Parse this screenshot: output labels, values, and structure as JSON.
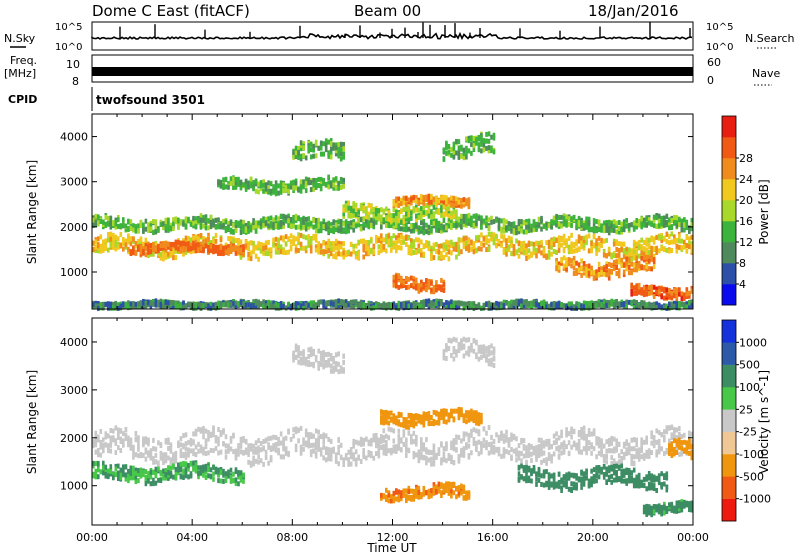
{
  "header": {
    "title": "Dome C East (fitACF)",
    "beam": "Beam 00",
    "date": "18/Jan/2016"
  },
  "top_panels": {
    "nsky_label": "N.Sky",
    "nsky_ticks": [
      "10^5",
      "10^0"
    ],
    "nsearch_label": "N.Search",
    "nsearch_ticks": [
      "10^5",
      "10^0"
    ],
    "freq_label": "Freq.",
    "freq_unit": "[MHz]",
    "freq_ticks": [
      "10",
      "8"
    ],
    "nave_label": "Nave",
    "nave_ticks": [
      "60",
      "0"
    ],
    "cpid_label": "CPID",
    "cpid_value": "twofsound 3501"
  },
  "colors": {
    "power": [
      "#0a0aee",
      "#2c4fa8",
      "#4e8a5c",
      "#3cb33c",
      "#a8d82a",
      "#f0c81e",
      "#f08c1e",
      "#f05a14",
      "#e81e12"
    ],
    "velocity": [
      "#ee1a10",
      "#f05a14",
      "#f0960e",
      "#f0c896",
      "#c8c8c8",
      "#48c848",
      "#3c8c64",
      "#2c5aa8",
      "#1432dc"
    ]
  },
  "chart_data": [
    {
      "type": "heatmap",
      "name": "power",
      "xlabel": "",
      "ylabel": "Slant Range [km]",
      "xlim": [
        0,
        24
      ],
      "ylim": [
        180,
        4500
      ],
      "yticks": [
        "1000",
        "2000",
        "3000",
        "4000"
      ],
      "colorbar": {
        "label": "Power [dB]",
        "ticks": [
          "4",
          "8",
          "12",
          "16",
          "20",
          "24",
          "28"
        ],
        "range": [
          0,
          32
        ]
      },
      "bands": [
        {
          "from_h": 0.0,
          "to_h": 24.0,
          "center_km": 1550,
          "width_km": 380,
          "level": 20
        },
        {
          "from_h": 0.0,
          "to_h": 24.0,
          "center_km": 2050,
          "width_km": 260,
          "level": 12
        },
        {
          "from_h": 1.5,
          "to_h": 6.0,
          "center_km": 1520,
          "width_km": 180,
          "level": 26
        },
        {
          "from_h": 10.0,
          "to_h": 14.5,
          "center_km": 2300,
          "width_km": 300,
          "level": 16
        },
        {
          "from_h": 12.0,
          "to_h": 15.0,
          "center_km": 2550,
          "width_km": 160,
          "level": 24
        },
        {
          "from_h": 8.0,
          "to_h": 10.0,
          "center_km": 3650,
          "width_km": 380,
          "level": 12
        },
        {
          "from_h": 14.0,
          "to_h": 16.0,
          "center_km": 3750,
          "width_km": 420,
          "level": 12
        },
        {
          "from_h": 12.0,
          "to_h": 14.0,
          "center_km": 750,
          "width_km": 280,
          "level": 26
        },
        {
          "from_h": 18.5,
          "to_h": 22.5,
          "center_km": 1100,
          "width_km": 350,
          "level": 24
        },
        {
          "from_h": 21.5,
          "to_h": 24.0,
          "center_km": 550,
          "width_km": 220,
          "level": 28
        },
        {
          "from_h": 0.0,
          "to_h": 24.0,
          "center_km": 260,
          "width_km": 120,
          "level": 8
        },
        {
          "from_h": 5.0,
          "to_h": 10.0,
          "center_km": 2900,
          "width_km": 260,
          "level": 12
        }
      ]
    },
    {
      "type": "heatmap",
      "name": "velocity",
      "xlabel": "Time UT",
      "ylabel": "Slant Range [km]",
      "xlim": [
        0,
        24
      ],
      "ylim": [
        180,
        4500
      ],
      "xticks": [
        "00:00",
        "04:00",
        "08:00",
        "12:00",
        "16:00",
        "20:00",
        "00:00"
      ],
      "yticks": [
        "1000",
        "2000",
        "3000",
        "4000"
      ],
      "colorbar": {
        "label": "Velocity [m s^-1]",
        "ticks": [
          "-1000",
          "-500",
          "-100",
          "-25",
          "25",
          "100",
          "500",
          "1000"
        ]
      },
      "bands": [
        {
          "from_h": 0.0,
          "to_h": 24.0,
          "center_km": 1800,
          "width_km": 550,
          "level": 0
        },
        {
          "from_h": 0.0,
          "to_h": 6.0,
          "center_km": 1250,
          "width_km": 300,
          "level": 100
        },
        {
          "from_h": 11.5,
          "to_h": 15.5,
          "center_km": 2400,
          "width_km": 260,
          "level": -300
        },
        {
          "from_h": 11.5,
          "to_h": 15.0,
          "center_km": 850,
          "width_km": 260,
          "level": -400
        },
        {
          "from_h": 17.0,
          "to_h": 23.0,
          "center_km": 1150,
          "width_km": 360,
          "level": 300
        },
        {
          "from_h": 22.0,
          "to_h": 24.0,
          "center_km": 520,
          "width_km": 200,
          "level": 150
        },
        {
          "from_h": 23.0,
          "to_h": 24.0,
          "center_km": 1700,
          "width_km": 350,
          "level": -200
        },
        {
          "from_h": 8.0,
          "to_h": 10.0,
          "center_km": 3650,
          "width_km": 380,
          "level": 0
        },
        {
          "from_h": 14.0,
          "to_h": 16.0,
          "center_km": 3750,
          "width_km": 420,
          "level": 0
        }
      ]
    }
  ]
}
